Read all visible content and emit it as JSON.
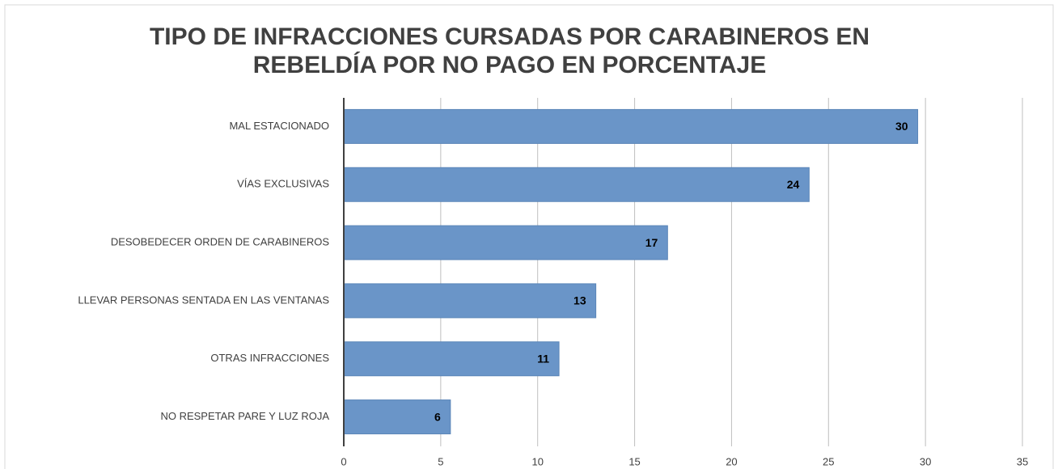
{
  "chart_data": {
    "type": "hbar",
    "title": [
      "TIPO DE INFRACCIONES CURSADAS POR CARABINEROS EN",
      "REBELDÍA POR NO PAGO EN PORCENTAJE"
    ],
    "categories": [
      "MAL ESTACIONADO",
      "VÍAS EXCLUSIVAS",
      "DESOBEDECER ORDEN DE CARABINEROS",
      "LLEVAR PERSONAS SENTADA EN LAS VENTANAS",
      "OTRAS INFRACCIONES",
      "NO RESPETAR PARE Y LUZ ROJA"
    ],
    "values": [
      29.6,
      24,
      16.7,
      13,
      11.1,
      5.5
    ],
    "value_labels": [
      "30",
      "24",
      "17",
      "13",
      "11",
      "6"
    ],
    "color": "#6a95c8",
    "xlim": [
      0,
      35
    ],
    "xticks": [
      0,
      5,
      10,
      15,
      20,
      25,
      30,
      35
    ],
    "grid": true
  }
}
